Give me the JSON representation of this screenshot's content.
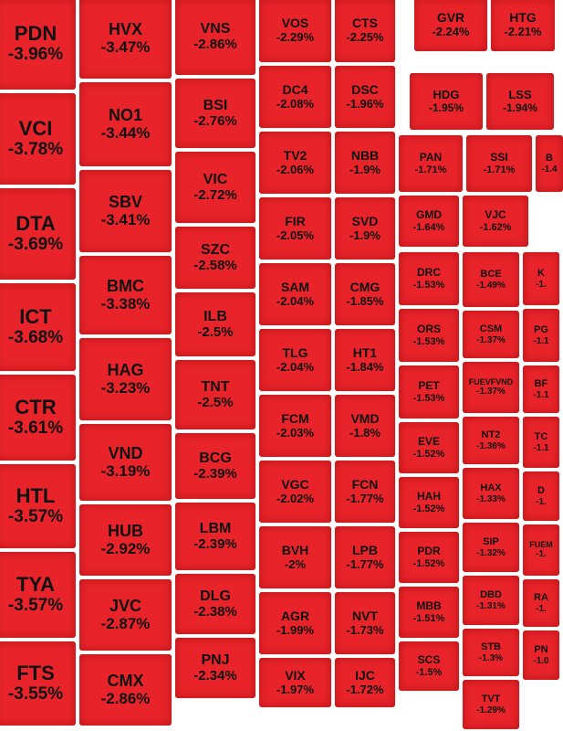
{
  "chart_data": {
    "type": "treemap",
    "color": "#e8242a",
    "tiles": [
      {
        "symbol": "PDN",
        "change": "-3.96%"
      },
      {
        "symbol": "VCI",
        "change": "-3.78%"
      },
      {
        "symbol": "DTA",
        "change": "-3.69%"
      },
      {
        "symbol": "ICT",
        "change": "-3.68%"
      },
      {
        "symbol": "CTR",
        "change": "-3.61%"
      },
      {
        "symbol": "HTL",
        "change": "-3.57%"
      },
      {
        "symbol": "TYA",
        "change": "-3.57%"
      },
      {
        "symbol": "FTS",
        "change": "-3.55%"
      },
      {
        "symbol": "HVX",
        "change": "-3.47%"
      },
      {
        "symbol": "NO1",
        "change": "-3.44%"
      },
      {
        "symbol": "SBV",
        "change": "-3.41%"
      },
      {
        "symbol": "BMC",
        "change": "-3.38%"
      },
      {
        "symbol": "HAG",
        "change": "-3.23%"
      },
      {
        "symbol": "VND",
        "change": "-3.19%"
      },
      {
        "symbol": "HUB",
        "change": "-2.92%"
      },
      {
        "symbol": "JVC",
        "change": "-2.87%"
      },
      {
        "symbol": "CMX",
        "change": "-2.86%"
      },
      {
        "symbol": "VNS",
        "change": "-2.86%"
      },
      {
        "symbol": "BSI",
        "change": "-2.76%"
      },
      {
        "symbol": "VIC",
        "change": "-2.72%"
      },
      {
        "symbol": "SZC",
        "change": "-2.58%"
      },
      {
        "symbol": "ILB",
        "change": "-2.5%"
      },
      {
        "symbol": "TNT",
        "change": "-2.5%"
      },
      {
        "symbol": "BCG",
        "change": "-2.39%"
      },
      {
        "symbol": "LBM",
        "change": "-2.39%"
      },
      {
        "symbol": "DLG",
        "change": "-2.38%"
      },
      {
        "symbol": "PNJ",
        "change": "-2.34%"
      },
      {
        "symbol": "VOS",
        "change": "-2.29%"
      },
      {
        "symbol": "DC4",
        "change": "-2.08%"
      },
      {
        "symbol": "TV2",
        "change": "-2.06%"
      },
      {
        "symbol": "FIR",
        "change": "-2.05%"
      },
      {
        "symbol": "SAM",
        "change": "-2.04%"
      },
      {
        "symbol": "TLG",
        "change": "-2.04%"
      },
      {
        "symbol": "FCM",
        "change": "-2.03%"
      },
      {
        "symbol": "VGC",
        "change": "-2.02%"
      },
      {
        "symbol": "BVH",
        "change": "-2%"
      },
      {
        "symbol": "AGR",
        "change": "-1.99%"
      },
      {
        "symbol": "VIX",
        "change": "-1.97%"
      },
      {
        "symbol": "CTS",
        "change": "-2.25%"
      },
      {
        "symbol": "DSC",
        "change": "-1.96%"
      },
      {
        "symbol": "NBB",
        "change": "-1.9%"
      },
      {
        "symbol": "SVD",
        "change": "-1.9%"
      },
      {
        "symbol": "CMG",
        "change": "-1.85%"
      },
      {
        "symbol": "HT1",
        "change": "-1.84%"
      },
      {
        "symbol": "VMD",
        "change": "-1.8%"
      },
      {
        "symbol": "FCN",
        "change": "-1.77%"
      },
      {
        "symbol": "LPB",
        "change": "-1.77%"
      },
      {
        "symbol": "NVT",
        "change": "-1.73%"
      },
      {
        "symbol": "IJC",
        "change": "-1.72%"
      },
      {
        "symbol": "GVR",
        "change": "-2.24%"
      },
      {
        "symbol": "HDG",
        "change": "-1.95%"
      },
      {
        "symbol": "PAN",
        "change": "-1.71%"
      },
      {
        "symbol": "GMD",
        "change": "-1.64%"
      },
      {
        "symbol": "DRC",
        "change": "-1.53%"
      },
      {
        "symbol": "ORS",
        "change": "-1.53%"
      },
      {
        "symbol": "PET",
        "change": "-1.53%"
      },
      {
        "symbol": "EVE",
        "change": "-1.52%"
      },
      {
        "symbol": "HAH",
        "change": "-1.52%"
      },
      {
        "symbol": "PDR",
        "change": "-1.52%"
      },
      {
        "symbol": "MBB",
        "change": "-1.51%"
      },
      {
        "symbol": "SCS",
        "change": "-1.5%"
      },
      {
        "symbol": "HTG",
        "change": "-2.21%"
      },
      {
        "symbol": "LSS",
        "change": "-1.94%"
      },
      {
        "symbol": "SSI",
        "change": "-1.71%"
      },
      {
        "symbol": "VJC",
        "change": "-1.62%"
      },
      {
        "symbol": "BCE",
        "change": "-1.49%"
      },
      {
        "symbol": "CSM",
        "change": "-1.37%"
      },
      {
        "symbol": "FUEVFVND",
        "change": "-1.37%"
      },
      {
        "symbol": "NT2",
        "change": "-1.36%"
      },
      {
        "symbol": "HAX",
        "change": "-1.33%"
      },
      {
        "symbol": "SIP",
        "change": "-1.32%"
      },
      {
        "symbol": "DBD",
        "change": "-1.31%"
      },
      {
        "symbol": "STB",
        "change": "-1.3%"
      },
      {
        "symbol": "TVT",
        "change": "-1.29%"
      },
      {
        "symbol": "B",
        "change": "-1.4"
      },
      {
        "symbol": "K",
        "change": "-1."
      },
      {
        "symbol": "PG",
        "change": "-1.1"
      },
      {
        "symbol": "BF",
        "change": "-1.1"
      },
      {
        "symbol": "TC",
        "change": "-1.1"
      },
      {
        "symbol": "D",
        "change": "-1."
      },
      {
        "symbol": "FUEM",
        "change": "-1."
      },
      {
        "symbol": "RA",
        "change": "-1."
      },
      {
        "symbol": "PN",
        "change": "-1.0"
      }
    ]
  }
}
